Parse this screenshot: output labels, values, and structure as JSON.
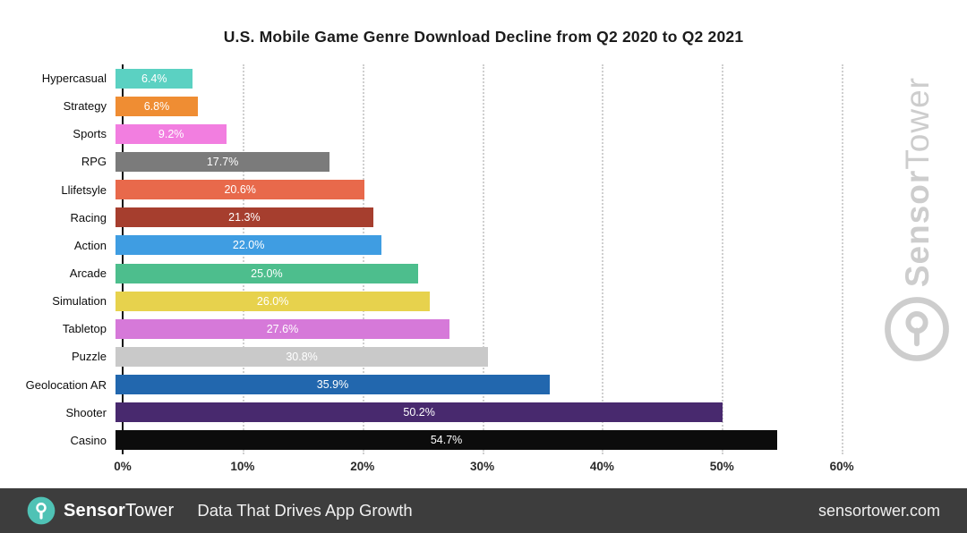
{
  "title": "U.S. Mobile Game Genre Download Decline from Q2 2020 to Q2 2021",
  "chart_data": {
    "type": "bar",
    "orientation": "horizontal",
    "categories": [
      "Hypercasual",
      "Strategy",
      "Sports",
      "RPG",
      "Llifetsyle",
      "Racing",
      "Action",
      "Arcade",
      "Simulation",
      "Tabletop",
      "Puzzle",
      "Geolocation AR",
      "Shooter",
      "Casino"
    ],
    "values": [
      6.4,
      6.8,
      9.2,
      17.7,
      20.6,
      21.3,
      22.0,
      25.0,
      26.0,
      27.6,
      30.8,
      35.9,
      50.2,
      54.7
    ],
    "labels": [
      "6.4%",
      "6.8%",
      "9.2%",
      "17.7%",
      "20.6%",
      "21.3%",
      "22.0%",
      "25.0%",
      "26.0%",
      "27.6%",
      "30.8%",
      "35.9%",
      "50.2%",
      "54.7%"
    ],
    "colors": [
      "#5bd1c2",
      "#ef8d33",
      "#f27ee0",
      "#7b7b7b",
      "#e8694b",
      "#a63e2e",
      "#3f9de2",
      "#4dbe8d",
      "#e7d24d",
      "#d679d9",
      "#c9c9c9",
      "#2267ae",
      "#48296e",
      "#0c0c0c"
    ],
    "ticks": [
      0,
      10,
      20,
      30,
      40,
      50,
      60
    ],
    "tick_labels": [
      "0%",
      "10%",
      "20%",
      "30%",
      "40%",
      "50%",
      "60%"
    ],
    "xlim": [
      0,
      63.5
    ],
    "grid": "dotted-vertical",
    "value_label_color": "#ffffff"
  },
  "watermark": {
    "text_bold": "Sensor",
    "text_light": "Tower"
  },
  "footer": {
    "brand_bold": "Sensor",
    "brand_regular": "Tower",
    "tagline": "Data That Drives App Growth",
    "site": "sensortower.com",
    "logo_color": "#4fc2b5",
    "background": "#3d3d3d"
  }
}
